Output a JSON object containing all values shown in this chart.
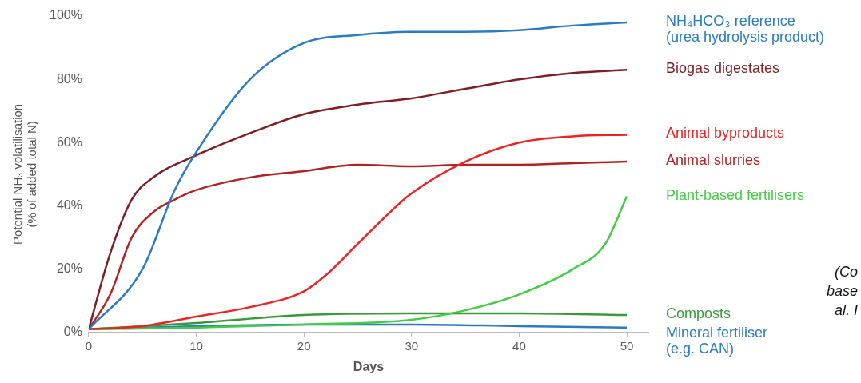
{
  "chart_data": {
    "type": "line",
    "xlabel": "Days",
    "ylabel": "Potential NH₃ volatilisation\n(% of added total N)",
    "xlim": [
      0,
      52
    ],
    "xticks": [
      0,
      10,
      20,
      30,
      40,
      50
    ],
    "ylim": [
      0,
      100
    ],
    "yticks": [
      {
        "value": 0,
        "label": "0%"
      },
      {
        "value": 20,
        "label": "20%"
      },
      {
        "value": 40,
        "label": "40%"
      },
      {
        "value": 60,
        "label": "60%"
      },
      {
        "value": 80,
        "label": "80%"
      },
      {
        "value": 100,
        "label": "100%"
      }
    ],
    "grid": false,
    "legend": false,
    "marker": "none",
    "line_style": "solid",
    "annotations": [
      "(Co",
      "base",
      "al. I"
    ],
    "series": [
      {
        "name": "NH₄HCO₃ reference\n(urea hydrolysis product)",
        "color": "#2a7bc0",
        "x": [
          0,
          5,
          8,
          10,
          15,
          20,
          25,
          30,
          35,
          40,
          45,
          50
        ],
        "values": [
          1,
          20,
          45,
          57,
          80,
          91.5,
          94,
          95,
          95,
          95.5,
          97,
          98
        ]
      },
      {
        "name": "Biogas digestates",
        "color": "#7b1f24",
        "x": [
          0,
          2,
          4,
          6,
          10,
          15,
          20,
          25,
          30,
          35,
          40,
          45,
          50
        ],
        "values": [
          1,
          25,
          42,
          49,
          56,
          63,
          69,
          72,
          74,
          77,
          80,
          82,
          83
        ]
      },
      {
        "name": "Animal byproducts",
        "color": "#ee2222",
        "x": [
          0,
          5,
          10,
          15,
          20,
          22,
          25,
          28,
          30,
          35,
          40,
          45,
          50
        ],
        "values": [
          1,
          2,
          5,
          8,
          13,
          18,
          28,
          38,
          44,
          54,
          60,
          62,
          62.5
        ]
      },
      {
        "name": "Animal slurries",
        "color": "#b22222",
        "x": [
          0,
          2,
          4,
          6,
          8,
          10,
          15,
          20,
          25,
          30,
          35,
          40,
          45,
          50
        ],
        "values": [
          1,
          12,
          30,
          38,
          42,
          45,
          49,
          51,
          53,
          52.5,
          53,
          53,
          53.5,
          54
        ]
      },
      {
        "name": "Plant-based fertilisers",
        "color": "#44cc44",
        "x": [
          0,
          10,
          20,
          30,
          35,
          40,
          45,
          48,
          50
        ],
        "values": [
          1,
          1.5,
          2.5,
          4,
          7,
          12,
          20,
          28,
          43
        ]
      },
      {
        "name": "Composts",
        "color": "#3a9a3a",
        "x": [
          0,
          10,
          20,
          30,
          40,
          50
        ],
        "values": [
          1,
          3,
          5.5,
          6,
          6,
          5.5
        ]
      },
      {
        "name": "Mineral fertiliser\n(e.g. CAN)",
        "color": "#2a7bc0",
        "x": [
          0,
          10,
          20,
          30,
          40,
          50
        ],
        "values": [
          1,
          2,
          2.5,
          2.5,
          2,
          1.5
        ]
      }
    ]
  }
}
